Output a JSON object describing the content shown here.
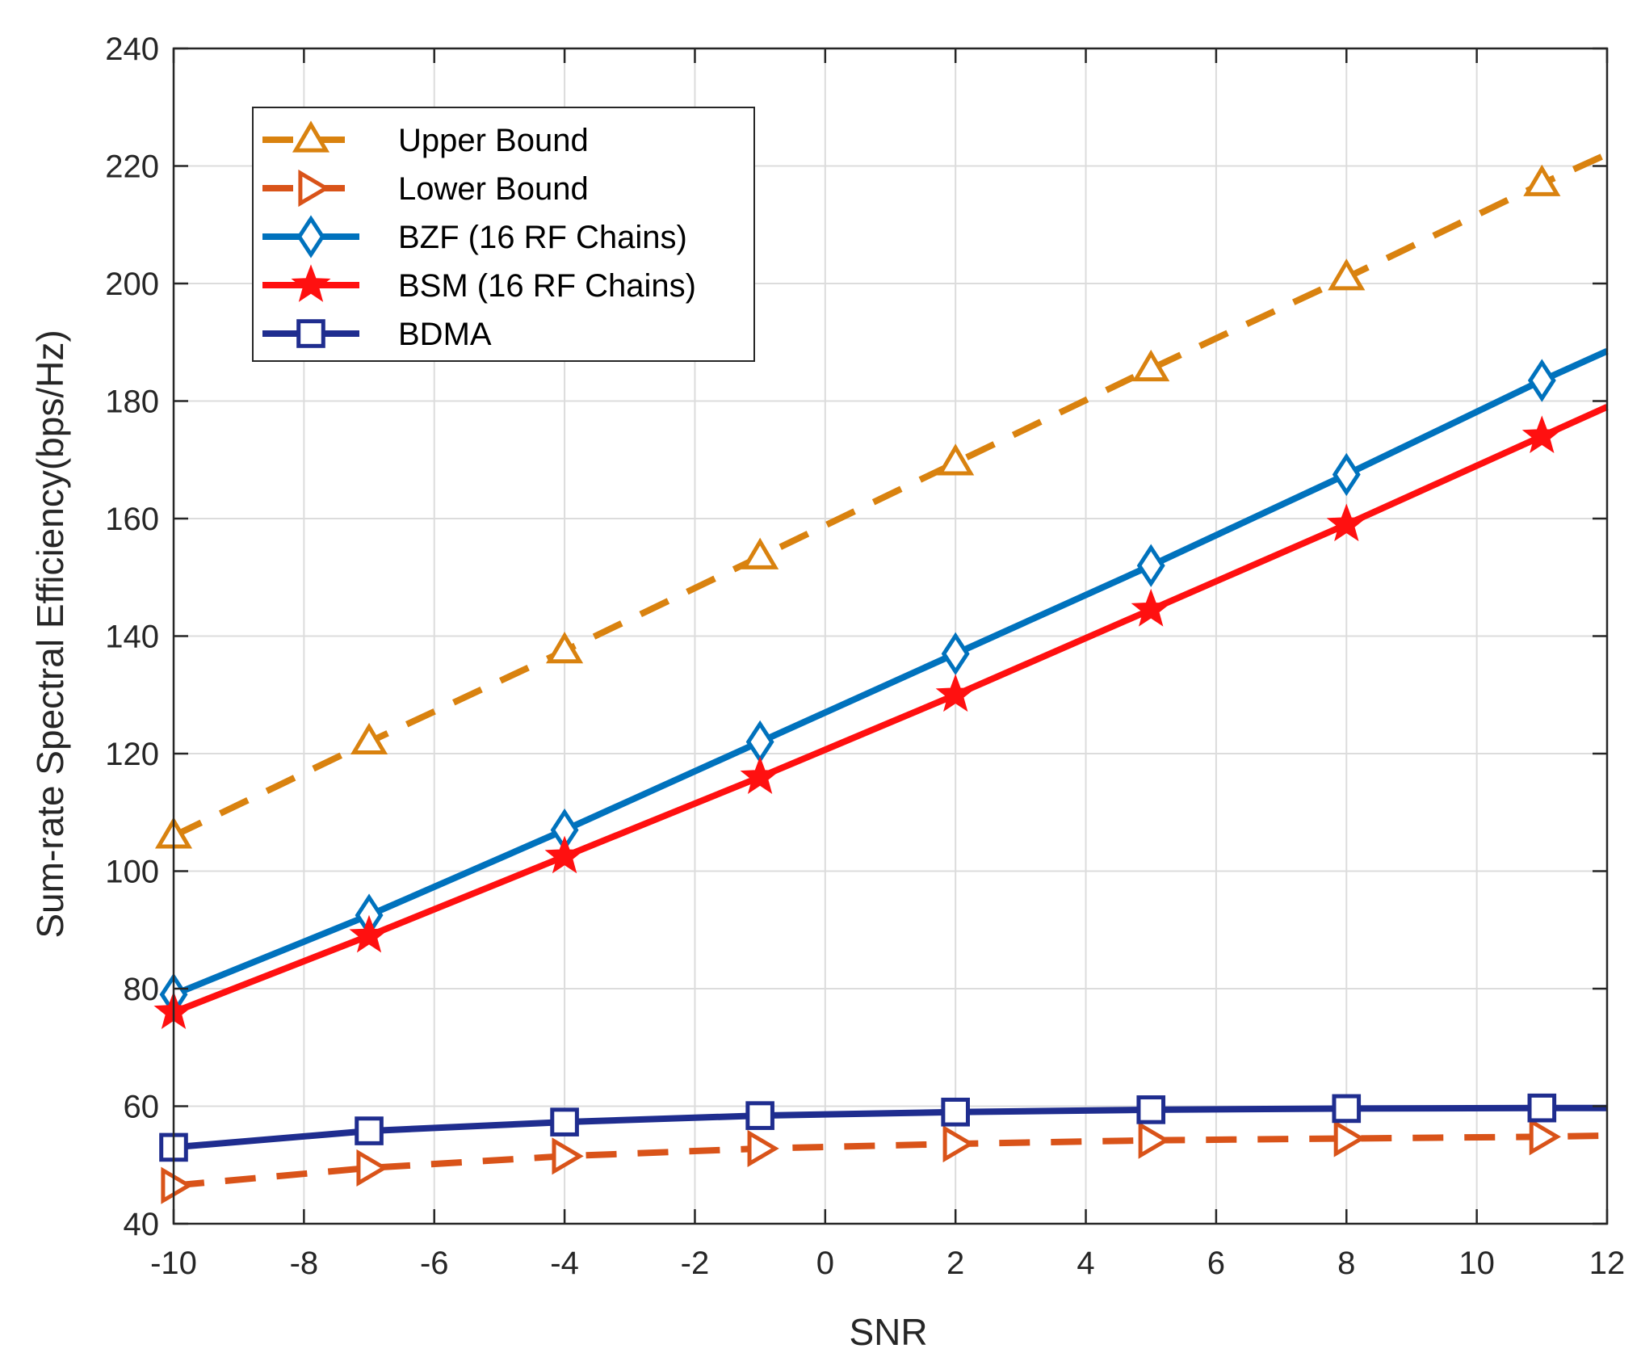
{
  "chart_data": {
    "type": "line",
    "xlabel": "SNR",
    "ylabel": "Sum-rate Spectral Efficiency(bps/Hz)",
    "xlim": [
      -10,
      12
    ],
    "ylim": [
      40,
      240
    ],
    "xticks": [
      -10,
      -8,
      -6,
      -4,
      -2,
      0,
      2,
      4,
      6,
      8,
      10,
      12
    ],
    "yticks": [
      40,
      60,
      80,
      100,
      120,
      140,
      160,
      180,
      200,
      220,
      240
    ],
    "grid": true,
    "legend_position": "top-left",
    "x": [
      -10,
      -7,
      -4,
      -1,
      2,
      5,
      8,
      11,
      12
    ],
    "series": [
      {
        "name": "Upper Bound",
        "values": [
          106,
          122,
          137.5,
          153.5,
          169.5,
          185.5,
          201,
          217,
          222
        ],
        "color": "#D9820F",
        "dash": "dashed",
        "marker": "triangle-up"
      },
      {
        "name": "Lower Bound",
        "values": [
          46.5,
          49.5,
          51.5,
          52.8,
          53.6,
          54.2,
          54.5,
          54.8,
          55
        ],
        "color": "#D95319",
        "dash": "dashed",
        "marker": "triangle-right"
      },
      {
        "name": "BZF (16 RF Chains)",
        "values": [
          79,
          92.5,
          107,
          122,
          137,
          152,
          167.5,
          183.5,
          188.5
        ],
        "color": "#0072BD",
        "dash": "solid",
        "marker": "diamond"
      },
      {
        "name": "BSM (16 RF Chains)",
        "values": [
          76,
          89,
          102.5,
          116,
          130,
          144.5,
          159,
          174,
          179
        ],
        "color": "#FF1010",
        "dash": "solid",
        "marker": "pentagram"
      },
      {
        "name": "BDMA",
        "values": [
          53,
          55.8,
          57.3,
          58.4,
          59,
          59.4,
          59.6,
          59.7,
          59.7
        ],
        "color": "#1F2D8F",
        "dash": "solid",
        "marker": "square"
      }
    ]
  }
}
